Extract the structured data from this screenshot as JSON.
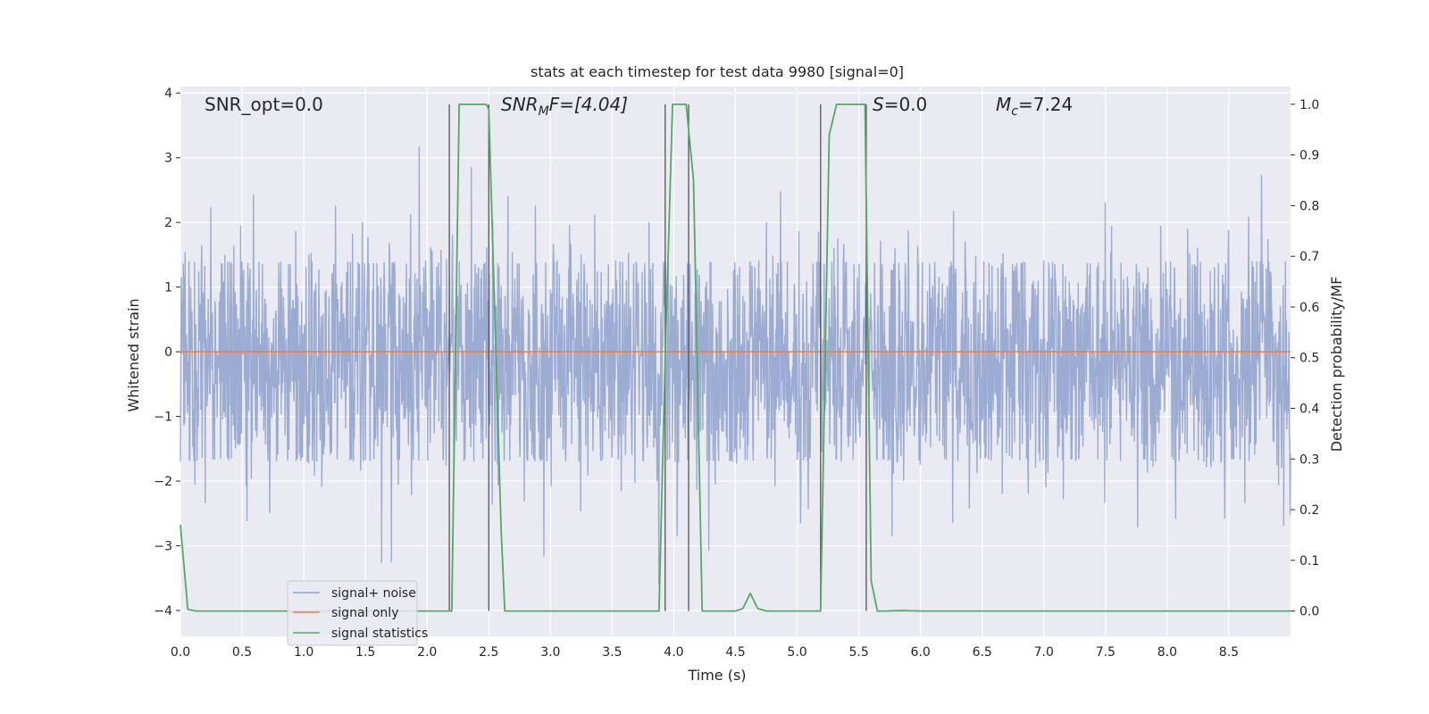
{
  "chart_data": {
    "type": "line",
    "title": "stats at each timestep for test data 9980 [signal=0]",
    "xlabel": "Time (s)",
    "ylabel": "Whitened strain",
    "y2label": "Detection probability/MF",
    "xlim": [
      0,
      9.0
    ],
    "ylim": [
      -4.4,
      4.1
    ],
    "y2lim": [
      -0.05,
      1.035
    ],
    "xticks": [
      0.0,
      0.5,
      1.0,
      1.5,
      2.0,
      2.5,
      3.0,
      3.5,
      4.0,
      4.5,
      5.0,
      5.5,
      6.0,
      6.5,
      7.0,
      7.5,
      8.0,
      8.5
    ],
    "xtick_labels": [
      "0.0",
      "0.5",
      "1.0",
      "1.5",
      "2.0",
      "2.5",
      "3.0",
      "3.5",
      "4.0",
      "4.5",
      "5.0",
      "5.5",
      "6.0",
      "6.5",
      "7.0",
      "7.5",
      "8.0",
      "8.5"
    ],
    "yticks": [
      4,
      3,
      2,
      1,
      0,
      -1,
      -2,
      -3,
      -4
    ],
    "ytick_labels": [
      "4",
      "3",
      "2",
      "1",
      "0",
      "−1",
      "−2",
      "−3",
      "−4"
    ],
    "y2ticks": [
      1.0,
      0.9,
      0.8,
      0.7,
      0.6,
      0.5,
      0.4,
      0.3,
      0.2,
      0.1,
      0.0
    ],
    "y2tick_labels": [
      "1.0",
      "0.9",
      "0.8",
      "0.7",
      "0.6",
      "0.5",
      "0.4",
      "0.3",
      "0.2",
      "0.1",
      "0.0"
    ],
    "grid": true,
    "legend_position": "lower-left",
    "annotations": {
      "snr_opt": "SNR_opt=0.0",
      "snr_mf_main": "SNR",
      "snr_mf_sub": "M",
      "snr_mf_rest": "F=[4.04]",
      "s_main": "S",
      "s_rest": "=0.0",
      "mc_main": "M",
      "mc_sub": "c",
      "mc_rest": "=7.24"
    },
    "series": [
      {
        "name": "signal+ noise",
        "color": "#8da0cb",
        "axis": "left",
        "description_values": "whitened noise, amplitude envelope approx [-1.7, 1.4] with spikes to about ±3.5",
        "envelope": [
          -1.7,
          1.4
        ]
      },
      {
        "name": "signal only",
        "color": "#dd8452",
        "axis": "left",
        "x": [
          0.0,
          9.0
        ],
        "y": [
          0.0,
          0.0
        ]
      },
      {
        "name": "signal statistics",
        "color": "#55a868",
        "axis": "right",
        "x": [
          0.0,
          0.06,
          0.13,
          2.18,
          2.2,
          2.26,
          2.4,
          2.48,
          2.5,
          2.6,
          2.63,
          3.88,
          3.93,
          3.99,
          4.1,
          4.16,
          4.23,
          4.26,
          4.5,
          4.56,
          4.62,
          4.68,
          4.75,
          5.18,
          5.19,
          5.26,
          5.32,
          5.55,
          5.6,
          5.65,
          5.72,
          5.85,
          6.0,
          9.0
        ],
        "y": [
          0.17,
          0.003,
          0.0,
          0.0,
          0.0,
          1.0,
          1.0,
          1.0,
          0.99,
          0.16,
          0.0,
          0.0,
          0.5,
          1.0,
          1.0,
          0.85,
          0.0,
          0.0,
          0.0,
          0.005,
          0.035,
          0.005,
          0.0,
          0.0,
          0.0,
          0.94,
          1.0,
          1.0,
          0.06,
          0.0,
          0.0,
          0.001,
          0.0,
          0.0
        ]
      }
    ],
    "vertical_lines_x": [
      2.18,
      2.5,
      3.93,
      4.12,
      5.19,
      5.56
    ]
  }
}
